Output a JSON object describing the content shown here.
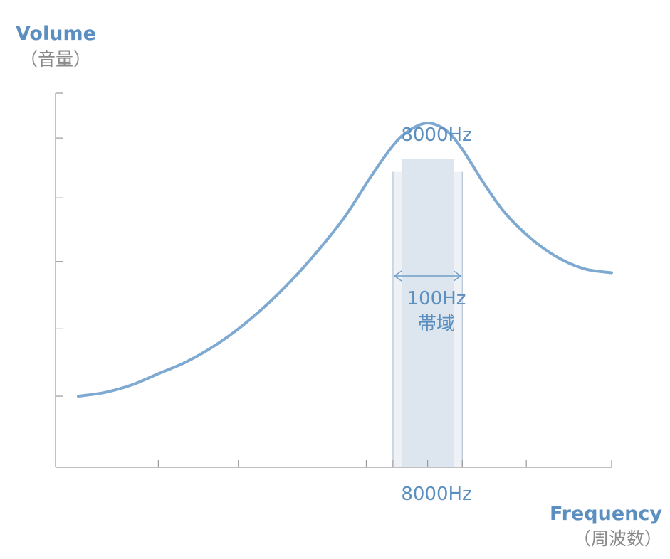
{
  "chart_data": {
    "type": "line",
    "ylabel": "Volume",
    "ylabel_sub": "（音量）",
    "xlabel": "Frequency",
    "xlabel_sub": "（周波数）",
    "peak_label": "8000Hz",
    "center_label": "8000Hz",
    "bandwidth_label": "100Hz",
    "bandwidth_sub": "帯域",
    "series": [
      {
        "values": [
          {
            "x": 0.0,
            "y": 0.19
          },
          {
            "x": 0.05,
            "y": 0.2
          },
          {
            "x": 0.1,
            "y": 0.22
          },
          {
            "x": 0.15,
            "y": 0.25
          },
          {
            "x": 0.2,
            "y": 0.28
          },
          {
            "x": 0.25,
            "y": 0.32
          },
          {
            "x": 0.3,
            "y": 0.37
          },
          {
            "x": 0.35,
            "y": 0.43
          },
          {
            "x": 0.4,
            "y": 0.5
          },
          {
            "x": 0.45,
            "y": 0.58
          },
          {
            "x": 0.5,
            "y": 0.67
          },
          {
            "x": 0.55,
            "y": 0.78
          },
          {
            "x": 0.59,
            "y": 0.86
          },
          {
            "x": 0.62,
            "y": 0.9
          },
          {
            "x": 0.655,
            "y": 0.92
          },
          {
            "x": 0.69,
            "y": 0.9
          },
          {
            "x": 0.72,
            "y": 0.85
          },
          {
            "x": 0.76,
            "y": 0.76
          },
          {
            "x": 0.8,
            "y": 0.68
          },
          {
            "x": 0.85,
            "y": 0.61
          },
          {
            "x": 0.9,
            "y": 0.56
          },
          {
            "x": 0.95,
            "y": 0.53
          },
          {
            "x": 1.0,
            "y": 0.52
          }
        ]
      }
    ],
    "band": {
      "x_start": 0.59,
      "x_end": 0.72,
      "x_center": 0.655
    },
    "xlim": [
      0,
      1
    ],
    "ylim": [
      0,
      1
    ],
    "x_ticks": [
      0.15,
      0.3,
      0.54,
      0.59,
      0.72,
      0.84
    ],
    "y_ticks": [
      0.19,
      0.37,
      0.55,
      0.72,
      0.88
    ],
    "grid": false,
    "colors": {
      "label": "#5b8fbf",
      "sublabel": "#8a8a8a",
      "curve": "#7ea9d1",
      "axis": "#9a9a9a",
      "band_outer": "#eef2f6",
      "band_inner": "#dde5ee"
    }
  }
}
